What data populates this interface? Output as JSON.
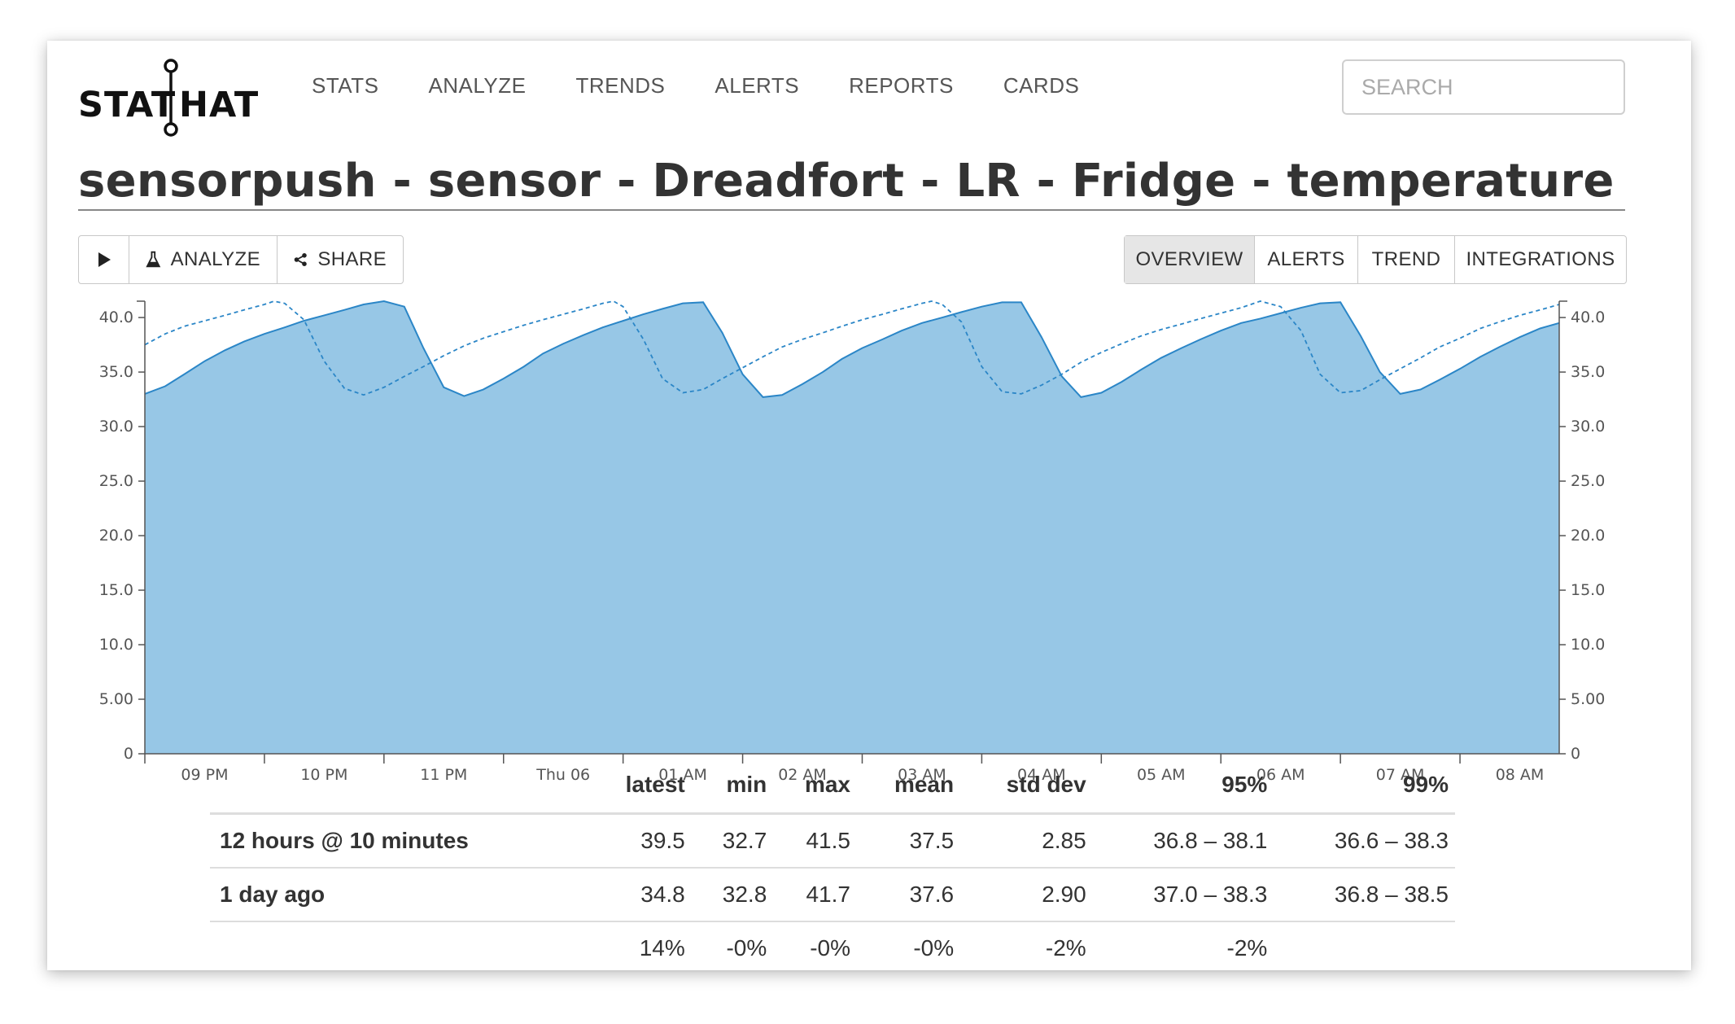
{
  "brand": {
    "left": "STAT",
    "right": "HAT"
  },
  "nav": [
    "STATS",
    "ANALYZE",
    "TRENDS",
    "ALERTS",
    "REPORTS",
    "CARDS"
  ],
  "search": {
    "placeholder": "SEARCH"
  },
  "title": "sensorpush - sensor - Dreadfort - LR - Fridge - temperature",
  "toolbar": {
    "play_icon": "play-icon",
    "analyze": "ANALYZE",
    "share": "SHARE"
  },
  "tabs": [
    {
      "label": "OVERVIEW",
      "active": true
    },
    {
      "label": "ALERTS",
      "active": false
    },
    {
      "label": "TREND",
      "active": false
    },
    {
      "label": "INTEGRATIONS",
      "active": false
    }
  ],
  "colors": {
    "area_fill": "#97c7e6",
    "line": "#2b86c7",
    "positive": "#5cb82e",
    "negative": "#e3311d"
  },
  "chart_data": {
    "type": "area",
    "y_ticks": [
      "40.0",
      "35.0",
      "30.0",
      "25.0",
      "20.0",
      "15.0",
      "10.0",
      "5.00",
      "0"
    ],
    "ylim": [
      0,
      41.5
    ],
    "x_tick_labels": [
      "09 PM",
      "10 PM",
      "11 PM",
      "Thu 06",
      "01 AM",
      "02 AM",
      "03 AM",
      "04 AM",
      "05 AM",
      "06 AM",
      "07 AM",
      "08 AM"
    ],
    "x_tick_hours": [
      0.5,
      1.5,
      2.5,
      3.5,
      4.5,
      5.5,
      6.5,
      7.5,
      8.5,
      9.5,
      10.5,
      11.5
    ],
    "xlim_hours": [
      0,
      11.83
    ],
    "series": [
      {
        "style": "area",
        "points": [
          [
            0,
            33.0
          ],
          [
            0.17,
            33.7
          ],
          [
            0.33,
            34.8
          ],
          [
            0.5,
            36.0
          ],
          [
            0.67,
            37.0
          ],
          [
            0.83,
            37.8
          ],
          [
            1.0,
            38.5
          ],
          [
            1.17,
            39.1
          ],
          [
            1.33,
            39.7
          ],
          [
            1.5,
            40.2
          ],
          [
            1.67,
            40.7
          ],
          [
            1.83,
            41.2
          ],
          [
            2.0,
            41.5
          ],
          [
            2.17,
            41.0
          ],
          [
            2.33,
            37.2
          ],
          [
            2.5,
            33.6
          ],
          [
            2.67,
            32.8
          ],
          [
            2.83,
            33.4
          ],
          [
            3.0,
            34.4
          ],
          [
            3.17,
            35.5
          ],
          [
            3.33,
            36.7
          ],
          [
            3.5,
            37.6
          ],
          [
            3.67,
            38.4
          ],
          [
            3.83,
            39.1
          ],
          [
            4.0,
            39.7
          ],
          [
            4.17,
            40.3
          ],
          [
            4.33,
            40.8
          ],
          [
            4.5,
            41.3
          ],
          [
            4.67,
            41.4
          ],
          [
            4.83,
            38.6
          ],
          [
            5.0,
            34.8
          ],
          [
            5.17,
            32.7
          ],
          [
            5.33,
            32.9
          ],
          [
            5.5,
            33.9
          ],
          [
            5.67,
            35.0
          ],
          [
            5.83,
            36.2
          ],
          [
            6.0,
            37.2
          ],
          [
            6.17,
            38.0
          ],
          [
            6.33,
            38.8
          ],
          [
            6.5,
            39.5
          ],
          [
            6.67,
            40.0
          ],
          [
            6.83,
            40.5
          ],
          [
            7.0,
            41.0
          ],
          [
            7.17,
            41.4
          ],
          [
            7.33,
            41.4
          ],
          [
            7.5,
            38.2
          ],
          [
            7.67,
            34.6
          ],
          [
            7.83,
            32.7
          ],
          [
            8.0,
            33.1
          ],
          [
            8.17,
            34.1
          ],
          [
            8.33,
            35.2
          ],
          [
            8.5,
            36.3
          ],
          [
            8.67,
            37.2
          ],
          [
            8.83,
            38.0
          ],
          [
            9.0,
            38.8
          ],
          [
            9.17,
            39.5
          ],
          [
            9.33,
            39.9
          ],
          [
            9.5,
            40.4
          ],
          [
            9.67,
            40.9
          ],
          [
            9.83,
            41.3
          ],
          [
            10.0,
            41.4
          ],
          [
            10.17,
            38.3
          ],
          [
            10.33,
            35.0
          ],
          [
            10.5,
            33.0
          ],
          [
            10.67,
            33.4
          ],
          [
            10.83,
            34.3
          ],
          [
            11.0,
            35.3
          ],
          [
            11.17,
            36.4
          ],
          [
            11.33,
            37.3
          ],
          [
            11.5,
            38.2
          ],
          [
            11.67,
            39.0
          ],
          [
            11.83,
            39.5
          ]
        ]
      },
      {
        "style": "dashed-line",
        "points": [
          [
            0,
            37.5
          ],
          [
            0.17,
            38.5
          ],
          [
            0.33,
            39.2
          ],
          [
            0.5,
            39.7
          ],
          [
            0.67,
            40.2
          ],
          [
            0.83,
            40.7
          ],
          [
            1.0,
            41.2
          ],
          [
            1.08,
            41.5
          ],
          [
            1.17,
            41.3
          ],
          [
            1.33,
            39.8
          ],
          [
            1.5,
            36.0
          ],
          [
            1.67,
            33.5
          ],
          [
            1.83,
            32.9
          ],
          [
            2.0,
            33.6
          ],
          [
            2.17,
            34.6
          ],
          [
            2.33,
            35.5
          ],
          [
            2.5,
            36.5
          ],
          [
            2.67,
            37.4
          ],
          [
            2.83,
            38.1
          ],
          [
            3.0,
            38.7
          ],
          [
            3.17,
            39.3
          ],
          [
            3.33,
            39.8
          ],
          [
            3.5,
            40.3
          ],
          [
            3.67,
            40.8
          ],
          [
            3.83,
            41.3
          ],
          [
            3.92,
            41.5
          ],
          [
            4.0,
            41.0
          ],
          [
            4.17,
            38.0
          ],
          [
            4.33,
            34.4
          ],
          [
            4.5,
            33.1
          ],
          [
            4.67,
            33.4
          ],
          [
            4.83,
            34.4
          ],
          [
            5.0,
            35.4
          ],
          [
            5.17,
            36.4
          ],
          [
            5.33,
            37.3
          ],
          [
            5.5,
            38.0
          ],
          [
            5.67,
            38.6
          ],
          [
            5.83,
            39.2
          ],
          [
            6.0,
            39.8
          ],
          [
            6.17,
            40.3
          ],
          [
            6.33,
            40.8
          ],
          [
            6.5,
            41.3
          ],
          [
            6.58,
            41.5
          ],
          [
            6.67,
            41.2
          ],
          [
            6.83,
            39.6
          ],
          [
            7.0,
            35.5
          ],
          [
            7.17,
            33.2
          ],
          [
            7.33,
            33.0
          ],
          [
            7.5,
            33.8
          ],
          [
            7.67,
            34.8
          ],
          [
            7.83,
            35.9
          ],
          [
            8.0,
            36.8
          ],
          [
            8.17,
            37.6
          ],
          [
            8.33,
            38.3
          ],
          [
            8.5,
            38.9
          ],
          [
            8.67,
            39.4
          ],
          [
            8.83,
            39.9
          ],
          [
            9.0,
            40.4
          ],
          [
            9.17,
            40.9
          ],
          [
            9.33,
            41.5
          ],
          [
            9.5,
            41.0
          ],
          [
            9.67,
            38.8
          ],
          [
            9.83,
            34.8
          ],
          [
            10.0,
            33.1
          ],
          [
            10.17,
            33.3
          ],
          [
            10.33,
            34.3
          ],
          [
            10.5,
            35.3
          ],
          [
            10.67,
            36.3
          ],
          [
            10.83,
            37.3
          ],
          [
            11.0,
            38.1
          ],
          [
            11.17,
            39.0
          ],
          [
            11.33,
            39.6
          ],
          [
            11.5,
            40.2
          ],
          [
            11.67,
            40.7
          ],
          [
            11.83,
            41.2
          ],
          [
            11.92,
            41.5
          ],
          [
            12.0,
            41.3
          ]
        ]
      }
    ]
  },
  "stats": {
    "headers": [
      "",
      "latest",
      "min",
      "max",
      "mean",
      "std dev",
      "95%",
      "99%"
    ],
    "rows": [
      [
        "12 hours @ 10 minutes",
        "39.5",
        "32.7",
        "41.5",
        "37.5",
        "2.85",
        "36.8 – 38.1",
        "36.6 – 38.3"
      ],
      [
        "1 day ago",
        "34.8",
        "32.8",
        "41.7",
        "37.6",
        "2.90",
        "37.0 – 38.3",
        "36.8 – 38.5"
      ]
    ],
    "changes": [
      "",
      "14%",
      "-0%",
      "-0%",
      "-0%",
      "-2%",
      "-2%",
      ""
    ]
  }
}
